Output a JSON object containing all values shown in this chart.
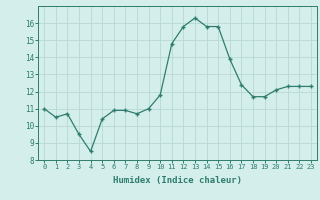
{
  "x": [
    0,
    1,
    2,
    3,
    4,
    5,
    6,
    7,
    8,
    9,
    10,
    11,
    12,
    13,
    14,
    15,
    16,
    17,
    18,
    19,
    20,
    21,
    22,
    23
  ],
  "y": [
    11.0,
    10.5,
    10.7,
    9.5,
    8.5,
    10.4,
    10.9,
    10.9,
    10.7,
    11.0,
    11.8,
    14.8,
    15.8,
    16.3,
    15.8,
    15.8,
    13.9,
    12.4,
    11.7,
    11.7,
    12.1,
    12.3,
    12.3,
    12.3
  ],
  "xlabel": "Humidex (Indice chaleur)",
  "ylim": [
    8,
    17
  ],
  "xlim": [
    -0.5,
    23.5
  ],
  "yticks": [
    8,
    9,
    10,
    11,
    12,
    13,
    14,
    15,
    16
  ],
  "xticks": [
    0,
    1,
    2,
    3,
    4,
    5,
    6,
    7,
    8,
    9,
    10,
    11,
    12,
    13,
    14,
    15,
    16,
    17,
    18,
    19,
    20,
    21,
    22,
    23
  ],
  "line_color": "#2e7d6e",
  "marker_color": "#2e7d6e",
  "bg_color": "#d4eeeb",
  "grid_color": "#b8d8d4",
  "label_color": "#2e7d6e",
  "tick_color": "#2e7d6e"
}
